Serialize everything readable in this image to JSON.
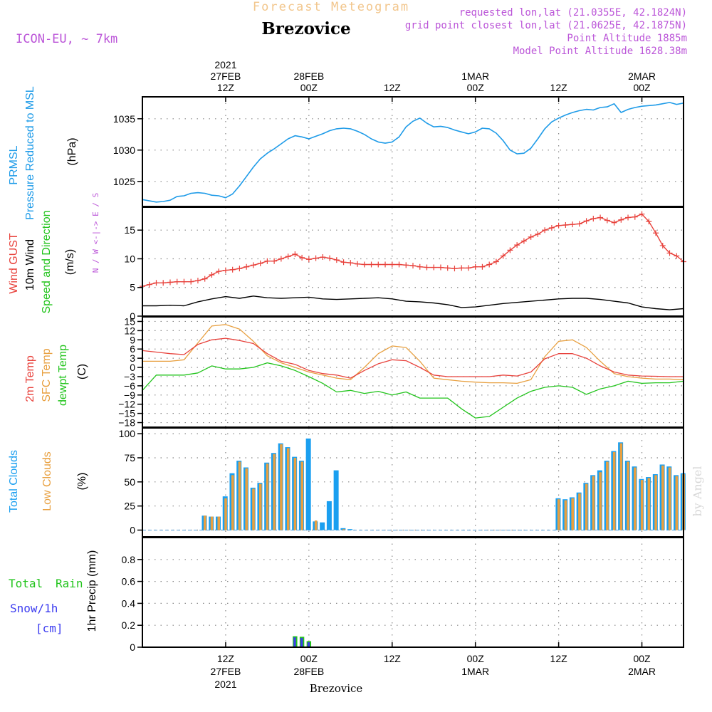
{
  "header": {
    "product_title": "Forecast Meteogram",
    "model": "ICON-EU, ~ 7km",
    "location": "Brezovice",
    "requested_point": "requested lon,lat (21.0355E, 42.1824N)",
    "grid_point": "grid point closest lon,lat (21.0625E, 42.1875N)",
    "point_altitude": "Point Altitude 1885m",
    "model_altitude": "Model Point Altitude 1628.38m",
    "footer_location": "Brezovice",
    "watermark": "by Angel"
  },
  "time_axis": {
    "top": [
      {
        "t": 12,
        "lines": [
          "2021",
          "27FEB",
          "12Z"
        ]
      },
      {
        "t": 24,
        "lines": [
          "28FEB",
          "00Z"
        ]
      },
      {
        "t": 36,
        "lines": [
          "12Z"
        ]
      },
      {
        "t": 48,
        "lines": [
          "1MAR",
          "00Z"
        ]
      },
      {
        "t": 60,
        "lines": [
          "12Z"
        ]
      },
      {
        "t": 72,
        "lines": [
          "2MAR",
          "00Z"
        ]
      }
    ],
    "bottom": [
      {
        "t": 12,
        "lines": [
          "12Z",
          "27FEB",
          "2021"
        ]
      },
      {
        "t": 24,
        "lines": [
          "00Z",
          "28FEB"
        ]
      },
      {
        "t": 36,
        "lines": [
          "12Z"
        ]
      },
      {
        "t": 48,
        "lines": [
          "00Z",
          "1MAR"
        ]
      },
      {
        "t": 60,
        "lines": [
          "12Z"
        ]
      },
      {
        "t": 72,
        "lines": [
          "00Z",
          "2MAR"
        ]
      }
    ]
  },
  "panel_labels": {
    "pressure": {
      "line1": "PRMSL",
      "line2": "Pressure Reduced to MSL",
      "unit": "(hPa)"
    },
    "wind": {
      "gust": "Wind GUST",
      "wind": "10m Wind",
      "dir": "Speed and Direction",
      "unit": "(m/s)",
      "compass": "N / W <-|-> E / S"
    },
    "temp": {
      "t2m": "2m Temp",
      "sfc": "SFC Temp",
      "dew": "dewpt Temp",
      "unit": "(C)"
    },
    "clouds": {
      "total": "Total Clouds",
      "low": "Low Clouds",
      "unit": "(%)"
    },
    "precip": {
      "total": "Total",
      "rain": "Rain",
      "snow": "Snow/1h",
      "snow_unit": "[cm]",
      "axis": "1hr Precip (mm)"
    }
  },
  "colors": {
    "pressure": "#1e9be8",
    "gust": "#e8423c",
    "wind": "#000000",
    "t2m": "#e8423c",
    "sfc": "#e8a040",
    "dew": "#22c41c",
    "total_cloud": "#1a9ff0",
    "low_cloud": "#e8a040",
    "rain": "#22c41c",
    "snow": "#3c3cf0",
    "header_point": "#bb55d8",
    "title_faded": "#f2c68c"
  },
  "chart_data": [
    {
      "type": "line",
      "name": "pressure",
      "x_unit": "hours from 27FEB 00Z",
      "xlim": [
        0,
        78
      ],
      "ylim": [
        1021,
        1038.5
      ],
      "yticks": [
        1025,
        1030,
        1035
      ],
      "series": [
        {
          "name": "PRMSL",
          "x": [
            0,
            2,
            3,
            4,
            5,
            6,
            7,
            8,
            9,
            10,
            11,
            12,
            13,
            14,
            15,
            16,
            17,
            18,
            19,
            20,
            21,
            22,
            23,
            24,
            25,
            26,
            27,
            28,
            29,
            30,
            31,
            32,
            33,
            34,
            35,
            36,
            37,
            38,
            39,
            40,
            41,
            42,
            43,
            44,
            45,
            46,
            47,
            48,
            49,
            50,
            51,
            52,
            53,
            54,
            55,
            56,
            57,
            58,
            59,
            60,
            61,
            62,
            63,
            64,
            65,
            66,
            67,
            68,
            69,
            70,
            71,
            72,
            73,
            74,
            75,
            76,
            77,
            78
          ],
          "values": [
            1022.1,
            1021.7,
            1021.8,
            1022.0,
            1022.6,
            1022.7,
            1023.1,
            1023.2,
            1023.1,
            1022.8,
            1022.7,
            1022.4,
            1023.0,
            1024.3,
            1025.8,
            1027.3,
            1028.6,
            1029.5,
            1030.2,
            1031.0,
            1031.8,
            1032.3,
            1032.1,
            1031.8,
            1032.2,
            1032.6,
            1033.1,
            1033.4,
            1033.5,
            1033.4,
            1033.0,
            1032.5,
            1031.8,
            1031.3,
            1031.1,
            1031.3,
            1032.1,
            1033.7,
            1034.6,
            1035.1,
            1034.3,
            1033.7,
            1033.8,
            1033.6,
            1033.2,
            1032.9,
            1032.6,
            1032.9,
            1033.5,
            1033.4,
            1032.7,
            1031.5,
            1030.0,
            1029.4,
            1029.5,
            1030.3,
            1031.8,
            1033.4,
            1034.5,
            1035.1,
            1035.6,
            1036.0,
            1036.3,
            1036.5,
            1036.4,
            1036.8,
            1036.9,
            1037.4,
            1036.0,
            1036.5,
            1036.8,
            1037.0,
            1037.1,
            1037.2,
            1037.4,
            1037.6,
            1037.3,
            1037.5
          ]
        }
      ]
    },
    {
      "type": "line",
      "name": "wind",
      "x_unit": "hours from 27FEB 00Z",
      "xlim": [
        0,
        78
      ],
      "ylim": [
        0,
        19
      ],
      "yticks": [
        0,
        5,
        10,
        15
      ],
      "series": [
        {
          "name": "Wind GUST",
          "x": [
            0,
            1,
            2,
            3,
            4,
            5,
            6,
            7,
            8,
            9,
            10,
            11,
            12,
            13,
            14,
            15,
            16,
            17,
            18,
            19,
            20,
            21,
            22,
            23,
            24,
            25,
            26,
            27,
            28,
            29,
            30,
            31,
            32,
            33,
            34,
            35,
            36,
            37,
            38,
            39,
            40,
            41,
            42,
            43,
            44,
            45,
            46,
            47,
            48,
            49,
            50,
            51,
            52,
            53,
            54,
            55,
            56,
            57,
            58,
            59,
            60,
            61,
            62,
            63,
            64,
            65,
            66,
            67,
            68,
            69,
            70,
            71,
            72,
            73,
            74,
            75,
            76,
            77,
            78
          ],
          "values": [
            5.2,
            5.5,
            5.8,
            5.8,
            5.9,
            6.0,
            6.0,
            6.0,
            6.2,
            6.5,
            7.2,
            7.8,
            8.0,
            8.1,
            8.3,
            8.6,
            8.9,
            9.2,
            9.6,
            9.6,
            10.0,
            10.4,
            10.8,
            10.2,
            9.9,
            10.1,
            10.3,
            10.1,
            9.8,
            9.4,
            9.3,
            9.1,
            9.0,
            9.0,
            9.0,
            9.0,
            9.0,
            9.0,
            8.9,
            8.8,
            8.6,
            8.5,
            8.5,
            8.5,
            8.4,
            8.3,
            8.4,
            8.4,
            8.6,
            8.6,
            9.0,
            9.5,
            10.5,
            11.5,
            12.4,
            13.1,
            13.8,
            14.3,
            15.0,
            15.4,
            15.8,
            15.9,
            16.0,
            16.1,
            16.6,
            17.0,
            17.2,
            16.7,
            16.3,
            16.8,
            17.2,
            17.3,
            17.8,
            16.5,
            14.5,
            12.3,
            11.0,
            10.5,
            9.5
          ]
        },
        {
          "name": "10m Wind",
          "x": [
            0,
            2,
            4,
            6,
            8,
            10,
            12,
            14,
            16,
            18,
            20,
            22,
            24,
            26,
            28,
            30,
            32,
            34,
            36,
            38,
            40,
            42,
            44,
            46,
            48,
            50,
            52,
            54,
            56,
            58,
            60,
            62,
            64,
            66,
            68,
            70,
            72,
            74,
            76,
            78
          ],
          "values": [
            1.8,
            1.8,
            1.9,
            1.8,
            2.5,
            3.0,
            3.4,
            3.1,
            3.5,
            3.2,
            3.1,
            3.2,
            3.3,
            3.0,
            2.9,
            3.0,
            3.1,
            3.2,
            3.0,
            2.6,
            2.5,
            2.3,
            2.0,
            1.5,
            1.6,
            1.9,
            2.2,
            2.4,
            2.6,
            2.8,
            3.0,
            3.1,
            3.1,
            2.9,
            2.6,
            2.3,
            1.6,
            1.3,
            1.1,
            1.3
          ]
        }
      ]
    },
    {
      "type": "line",
      "name": "temperature",
      "x_unit": "hours from 27FEB 00Z",
      "xlim": [
        0,
        78
      ],
      "ylim": [
        -19.5,
        16.5
      ],
      "yticks": [
        -18,
        -15,
        -12,
        -9,
        -6,
        -3,
        0,
        3,
        6,
        9,
        12,
        15
      ],
      "series": [
        {
          "name": "2m Temp",
          "x": [
            0,
            2,
            4,
            6,
            8,
            10,
            12,
            14,
            16,
            18,
            20,
            22,
            24,
            26,
            28,
            30,
            32,
            34,
            36,
            38,
            40,
            42,
            44,
            46,
            48,
            50,
            52,
            54,
            56,
            58,
            60,
            62,
            64,
            66,
            68,
            70,
            72,
            74,
            76,
            78
          ],
          "values": [
            5.5,
            5,
            4.5,
            4.2,
            7.5,
            9,
            9.5,
            8.8,
            7.8,
            4.5,
            2,
            1,
            -1,
            -2,
            -2.5,
            -3.5,
            -1,
            1.2,
            2.5,
            2.2,
            0,
            -2.5,
            -3,
            -3,
            -3,
            -3,
            -2.5,
            -2.8,
            -1.5,
            2.8,
            4.5,
            4.5,
            3,
            0.5,
            -1.5,
            -2.5,
            -2.8,
            -2.9,
            -3,
            -3
          ]
        },
        {
          "name": "SFC Temp",
          "x": [
            0,
            2,
            4,
            6,
            8,
            10,
            12,
            14,
            16,
            18,
            20,
            22,
            24,
            26,
            28,
            30,
            32,
            34,
            36,
            38,
            40,
            42,
            44,
            46,
            48,
            50,
            52,
            54,
            56,
            58,
            60,
            62,
            64,
            66,
            68,
            70,
            72,
            74,
            76,
            78
          ],
          "values": [
            2,
            2,
            2,
            2.5,
            8,
            13.5,
            14,
            12.5,
            8.5,
            3.8,
            1.5,
            0,
            -1.5,
            -2.5,
            -3.5,
            -4,
            0,
            4.5,
            7,
            6.5,
            2,
            -3.5,
            -4,
            -4.5,
            -4.8,
            -5,
            -5,
            -5.2,
            -4,
            3.5,
            8.5,
            9,
            6.5,
            2,
            -2,
            -3,
            -3.5,
            -3.8,
            -3.8,
            -4
          ]
        },
        {
          "name": "dewpt Temp",
          "x": [
            0,
            2,
            4,
            6,
            8,
            10,
            12,
            14,
            16,
            18,
            20,
            22,
            24,
            26,
            28,
            30,
            32,
            34,
            36,
            38,
            40,
            42,
            44,
            46,
            48,
            50,
            52,
            54,
            56,
            58,
            60,
            62,
            64,
            66,
            68,
            70,
            72,
            74,
            76,
            78
          ],
          "values": [
            -7.5,
            -2.5,
            -2.5,
            -2.5,
            -1.8,
            0.5,
            -0.5,
            -0.5,
            0,
            1.5,
            0.5,
            -1,
            -3,
            -5.2,
            -8,
            -7.5,
            -8.5,
            -7.8,
            -9,
            -8,
            -10,
            -10,
            -10,
            -13.5,
            -16.5,
            -16,
            -13,
            -10,
            -7.8,
            -6.5,
            -6,
            -6.5,
            -8.8,
            -7,
            -6,
            -4.5,
            -5.2,
            -5,
            -5,
            -4.5
          ]
        }
      ]
    },
    {
      "type": "bar",
      "name": "clouds",
      "x_unit": "hours from 27FEB 00Z",
      "xlim": [
        0,
        78
      ],
      "ylim": [
        -7,
        106
      ],
      "yticks": [
        0,
        25,
        50,
        75,
        100
      ],
      "x": [
        9,
        10,
        11,
        12,
        13,
        14,
        15,
        16,
        17,
        18,
        19,
        20,
        21,
        22,
        23,
        24,
        25,
        26,
        27,
        28,
        29,
        30,
        31,
        60,
        61,
        62,
        63,
        64,
        65,
        66,
        67,
        68,
        69,
        70,
        71,
        72,
        73,
        74,
        75,
        76,
        77,
        78
      ],
      "series": [
        {
          "name": "Total Clouds",
          "values": [
            15,
            14,
            14,
            35,
            59,
            72,
            65,
            44,
            49,
            70,
            80,
            90,
            86,
            76,
            72,
            95,
            9,
            8,
            30,
            62,
            2,
            1,
            0,
            33,
            32,
            34,
            39,
            49,
            57,
            62,
            72,
            82,
            91,
            72,
            66,
            53,
            55,
            58,
            68,
            66,
            57,
            59
          ]
        },
        {
          "name": "Low Clouds",
          "values": [
            15,
            14,
            14,
            33,
            57,
            71,
            64,
            43,
            48,
            69,
            79,
            89,
            85,
            75,
            71,
            0,
            10,
            0,
            0,
            0,
            1,
            0,
            0,
            32,
            31,
            33,
            38,
            48,
            56,
            60,
            71,
            81,
            90,
            71,
            65,
            52,
            54,
            57,
            67,
            65,
            56,
            58
          ]
        }
      ]
    },
    {
      "type": "bar",
      "name": "precipitation",
      "x_unit": "hours from 27FEB 00Z",
      "xlim": [
        0,
        78
      ],
      "ylim": [
        0,
        1.0
      ],
      "yticks": [
        0,
        0.2,
        0.4,
        0.6,
        0.8
      ],
      "x": [
        22,
        23,
        24
      ],
      "series": [
        {
          "name": "Total Rain",
          "values": [
            0.1,
            0.095,
            0.055
          ]
        },
        {
          "name": "Snow/1h",
          "values": [
            0.09,
            0.085,
            0.045
          ]
        }
      ]
    }
  ]
}
